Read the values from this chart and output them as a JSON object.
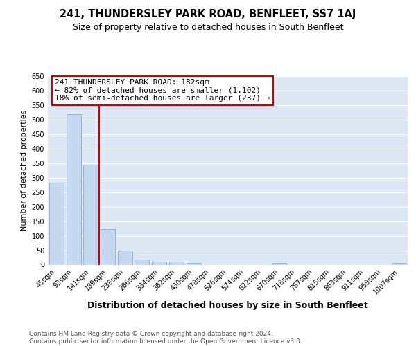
{
  "title": "241, THUNDERSLEY PARK ROAD, BENFLEET, SS7 1AJ",
  "subtitle": "Size of property relative to detached houses in South Benfleet",
  "xlabel": "Distribution of detached houses by size in South Benfleet",
  "ylabel": "Number of detached properties",
  "footnote": "Contains HM Land Registry data © Crown copyright and database right 2024.\nContains public sector information licensed under the Open Government Licence v3.0.",
  "categories": [
    "45sqm",
    "93sqm",
    "141sqm",
    "189sqm",
    "238sqm",
    "286sqm",
    "334sqm",
    "382sqm",
    "430sqm",
    "478sqm",
    "526sqm",
    "574sqm",
    "622sqm",
    "670sqm",
    "718sqm",
    "767sqm",
    "815sqm",
    "863sqm",
    "911sqm",
    "959sqm",
    "1007sqm"
  ],
  "values": [
    282,
    520,
    345,
    122,
    48,
    17,
    10,
    10,
    6,
    0,
    0,
    0,
    0,
    6,
    0,
    0,
    0,
    0,
    0,
    0,
    5
  ],
  "bar_color": "#c5d8ef",
  "bar_edge_color": "#8ab0d4",
  "highlight_color": "#cc0000",
  "highlight_index": 2,
  "annotation_line1": "241 THUNDERSLEY PARK ROAD: 182sqm",
  "annotation_line2": "← 82% of detached houses are smaller (1,102)",
  "annotation_line3": "18% of semi-detached houses are larger (237) →",
  "ylim": [
    0,
    650
  ],
  "yticks": [
    0,
    50,
    100,
    150,
    200,
    250,
    300,
    350,
    400,
    450,
    500,
    550,
    600,
    650
  ],
  "background_color": "#dde8f5",
  "grid_color": "#ffffff",
  "title_fontsize": 10.5,
  "subtitle_fontsize": 9,
  "ylabel_fontsize": 8,
  "xlabel_fontsize": 9,
  "tick_fontsize": 7,
  "annot_fontsize": 8,
  "footnote_fontsize": 6.5
}
